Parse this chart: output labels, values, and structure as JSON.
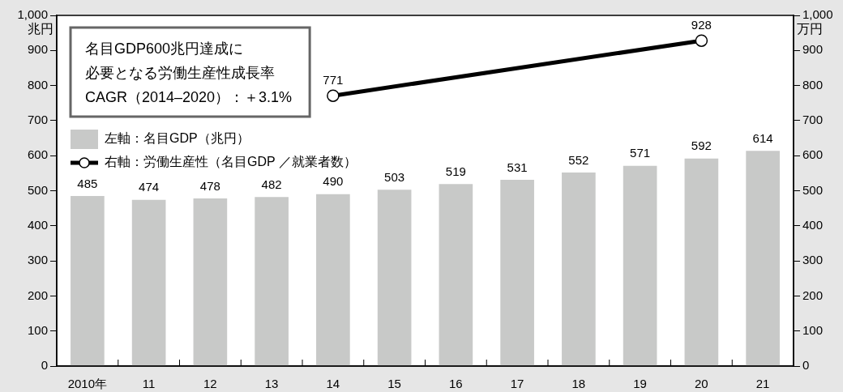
{
  "chart_data": {
    "type": "bar",
    "categories": [
      "2010年",
      "11",
      "12",
      "13",
      "14",
      "15",
      "16",
      "17",
      "18",
      "19",
      "20",
      "21"
    ],
    "series": [
      {
        "name": "左軸：名目GDP（兆円）",
        "color": "#c8c9c8",
        "values": [
          485,
          474,
          478,
          482,
          490,
          503,
          519,
          531,
          552,
          571,
          592,
          614
        ]
      },
      {
        "name": "右軸：労働生産性（名目GDP ／就業者数）",
        "type": "line",
        "axis": "y2",
        "color": "#000000",
        "values": [
          null,
          null,
          null,
          null,
          771,
          null,
          null,
          null,
          null,
          null,
          928,
          null
        ]
      }
    ],
    "ylim": [
      0,
      1000
    ],
    "yticks": [
      0,
      100,
      200,
      300,
      400,
      500,
      600,
      700,
      800,
      900,
      {
        "value": 1000,
        "label": "1,000"
      }
    ],
    "y2lim": [
      0,
      1000
    ],
    "y2ticks": [
      0,
      100,
      200,
      300,
      400,
      500,
      600,
      700,
      800,
      900,
      {
        "value": 1000,
        "label": "1,000"
      }
    ],
    "ylabel": "兆円",
    "y2label": "万円",
    "annotations": [
      "名目GDP600兆円達成に",
      "必要となる労働生産性成長率",
      "CAGR（2014–2020）：＋3.1%"
    ],
    "legend": "top left",
    "data_labels": true,
    "marker": "circle",
    "grid": false
  }
}
